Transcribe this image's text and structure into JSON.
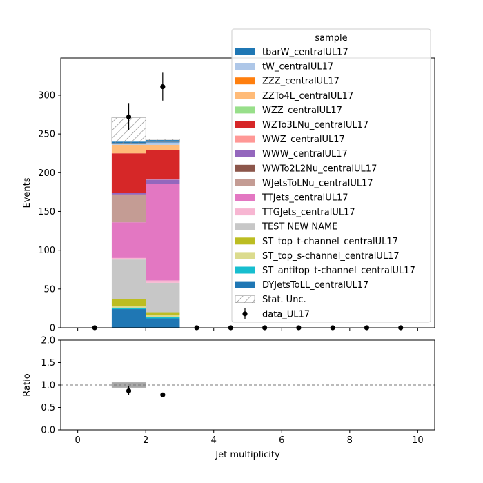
{
  "chart_data": [
    {
      "type": "bar",
      "stacked": true,
      "ylabel": "Events",
      "xlim": [
        -0.5,
        10.5
      ],
      "ylim": [
        0,
        348
      ],
      "yticks": [
        0,
        50,
        100,
        150,
        200,
        250,
        300
      ],
      "grid": false,
      "legend_title": "sample",
      "legend_placement": "top-right",
      "bins": [
        [
          1,
          2
        ],
        [
          2,
          3
        ]
      ],
      "series": [
        {
          "name": "DYJetsToLL_centralUL17",
          "color": "#1f77b4",
          "values": [
            24,
            12
          ]
        },
        {
          "name": "ST_antitop_t-channel_centralUL17",
          "color": "#17becf",
          "values": [
            2,
            2
          ]
        },
        {
          "name": "ST_top_s-channel_centralUL17",
          "color": "#dbdb8d",
          "values": [
            2,
            2
          ]
        },
        {
          "name": "ST_top_t-channel_centralUL17",
          "color": "#bcbd22",
          "values": [
            9,
            4
          ]
        },
        {
          "name": "TEST NEW NAME",
          "color": "#c7c7c7",
          "values": [
            51,
            38
          ]
        },
        {
          "name": "TTGJets_centralUL17",
          "color": "#f7b6d2",
          "values": [
            2,
            3
          ]
        },
        {
          "name": "TTJets_centralUL17",
          "color": "#e377c2",
          "values": [
            46,
            125
          ]
        },
        {
          "name": "WJetsToLNu_centralUL17",
          "color": "#c49c94",
          "values": [
            35,
            0
          ]
        },
        {
          "name": "WWTo2L2Nu_centralUL17",
          "color": "#8c564b",
          "values": [
            1,
            0
          ]
        },
        {
          "name": "WWW_centralUL17",
          "color": "#9467bd",
          "values": [
            2,
            5
          ]
        },
        {
          "name": "WWZ_centralUL17",
          "color": "#ff9896",
          "values": [
            0,
            1
          ]
        },
        {
          "name": "WZTo3LNu_centralUL17",
          "color": "#d62728",
          "values": [
            51,
            37
          ]
        },
        {
          "name": "WZZ_centralUL17",
          "color": "#98df8a",
          "values": [
            0,
            0
          ]
        },
        {
          "name": "ZZTo4L_centralUL17",
          "color": "#ffbb78",
          "values": [
            11,
            7
          ]
        },
        {
          "name": "ZZZ_centralUL17",
          "color": "#ff7f0e",
          "values": [
            0,
            0
          ]
        },
        {
          "name": "tW_centralUL17",
          "color": "#aec7e8",
          "values": [
            2,
            3
          ]
        },
        {
          "name": "tbarW_centralUL17",
          "color": "#1f77b4",
          "values": [
            2,
            3
          ]
        }
      ],
      "stat_unc": {
        "name": "Stat. Unc.",
        "bins": [
          [
            1,
            2
          ],
          [
            2,
            3
          ]
        ],
        "low": [
          238,
          240
        ],
        "high": [
          271,
          243
        ]
      },
      "data": {
        "name": "data_UL17",
        "x": [
          0.5,
          1.5,
          2.5,
          3.5,
          4.5,
          5.5,
          6.5,
          7.5,
          8.5,
          9.5
        ],
        "y": [
          0,
          272,
          311,
          0,
          0,
          0,
          0,
          0,
          0,
          0
        ],
        "err": [
          0,
          17,
          18,
          0,
          0,
          0,
          0,
          0,
          0,
          0
        ]
      },
      "legend_order": [
        "tbarW_centralUL17",
        "tW_centralUL17",
        "ZZZ_centralUL17",
        "ZZTo4L_centralUL17",
        "WZZ_centralUL17",
        "WZTo3LNu_centralUL17",
        "WWZ_centralUL17",
        "WWW_centralUL17",
        "WWTo2L2Nu_centralUL17",
        "WJetsToLNu_centralUL17",
        "TTJets_centralUL17",
        "TTGJets_centralUL17",
        "TEST NEW NAME",
        "ST_top_t-channel_centralUL17",
        "ST_top_s-channel_centralUL17",
        "ST_antitop_t-channel_centralUL17",
        "DYJetsToLL_centralUL17"
      ]
    },
    {
      "type": "scatter",
      "ylabel": "Ratio",
      "xlabel": "Jet multiplicity",
      "xlim": [
        -0.5,
        10.5
      ],
      "ylim": [
        0,
        2
      ],
      "yticks": [
        "0.0",
        "0.5",
        "1.0",
        "1.5",
        "2.0"
      ],
      "xticks": [
        "0",
        "2",
        "4",
        "6",
        "8",
        "10"
      ],
      "reference_line": 1.0,
      "unc_band": {
        "bins": [
          [
            1,
            2
          ]
        ],
        "low": [
          0.94
        ],
        "high": [
          1.06
        ]
      },
      "points": {
        "x": [
          1.5,
          2.5
        ],
        "y": [
          0.87,
          0.78
        ],
        "err": [
          0.1,
          0.0
        ]
      }
    }
  ]
}
